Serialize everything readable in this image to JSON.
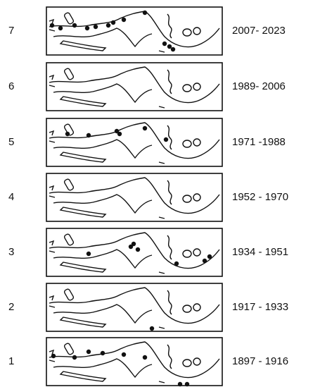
{
  "panels": [
    {
      "number": "7",
      "years": "2007- 2023"
    },
    {
      "number": "6",
      "years": "1989- 2006"
    },
    {
      "number": "5",
      "years": "1971 -1988"
    },
    {
      "number": "4",
      "years": "1952 - 1970"
    },
    {
      "number": "3",
      "years": "1934 - 1951"
    },
    {
      "number": "2",
      "years": "1917 - 1933"
    },
    {
      "number": "1",
      "years": "1897 - 1916"
    }
  ]
}
